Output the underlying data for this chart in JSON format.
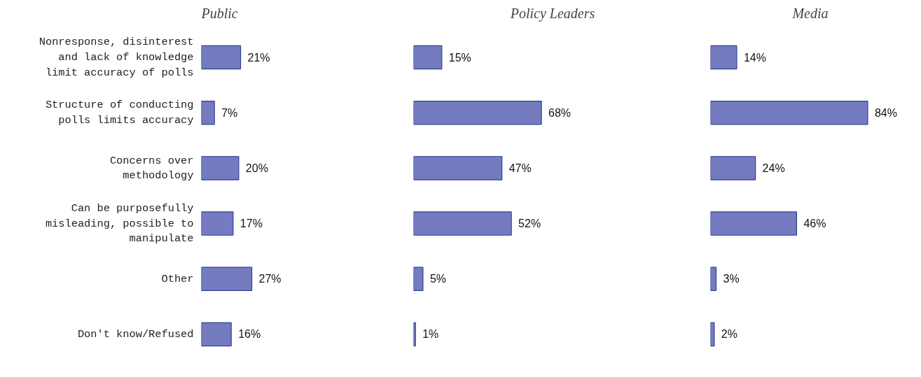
{
  "chart_data": [
    {
      "type": "bar",
      "orientation": "horizontal",
      "title": "Public",
      "tick_labels": "y",
      "grid": false,
      "categories": [
        "Nonresponse, disinterest and lack of knowledge limit accuracy of polls",
        "Structure of conducting polls limits accuracy",
        "Concerns over methodology",
        "Can be purposefully misleading, possible to manipulate",
        "Other",
        "Don't know/Refused"
      ],
      "values": [
        21,
        7,
        20,
        17,
        27,
        16
      ],
      "color": "#5c64b4",
      "value_labels": [
        "21%",
        "7%",
        "20%",
        "17%",
        "27%",
        "16%"
      ]
    },
    {
      "type": "bar",
      "orientation": "horizontal",
      "title": "Policy Leaders",
      "tick_labels": false,
      "grid": false,
      "categories": [
        "Nonresponse, disinterest and lack of knowledge limit accuracy of polls",
        "Structure of conducting polls limits accuracy",
        "Concerns over methodology",
        "Can be purposefully misleading, possible to manipulate",
        "Other",
        "Don't know/Refused"
      ],
      "values": [
        15,
        68,
        47,
        52,
        5,
        1
      ],
      "color": "#5c64b4",
      "value_labels": [
        "15%",
        "68%",
        "47%",
        "52%",
        "5%",
        "1%"
      ]
    },
    {
      "type": "bar",
      "orientation": "horizontal",
      "title": "Media",
      "tick_labels": false,
      "grid": false,
      "categories": [
        "Nonresponse, disinterest and lack of knowledge limit accuracy of polls",
        "Structure of conducting polls limits accuracy",
        "Concerns over methodology",
        "Can be purposefully misleading, possible to manipulate",
        "Other",
        "Don't know/Refused"
      ],
      "values": [
        14,
        84,
        24,
        46,
        3,
        2
      ],
      "color": "#5c64b4",
      "value_labels": [
        "14%",
        "84%",
        "24%",
        "46%",
        "3%",
        "2%"
      ]
    }
  ]
}
